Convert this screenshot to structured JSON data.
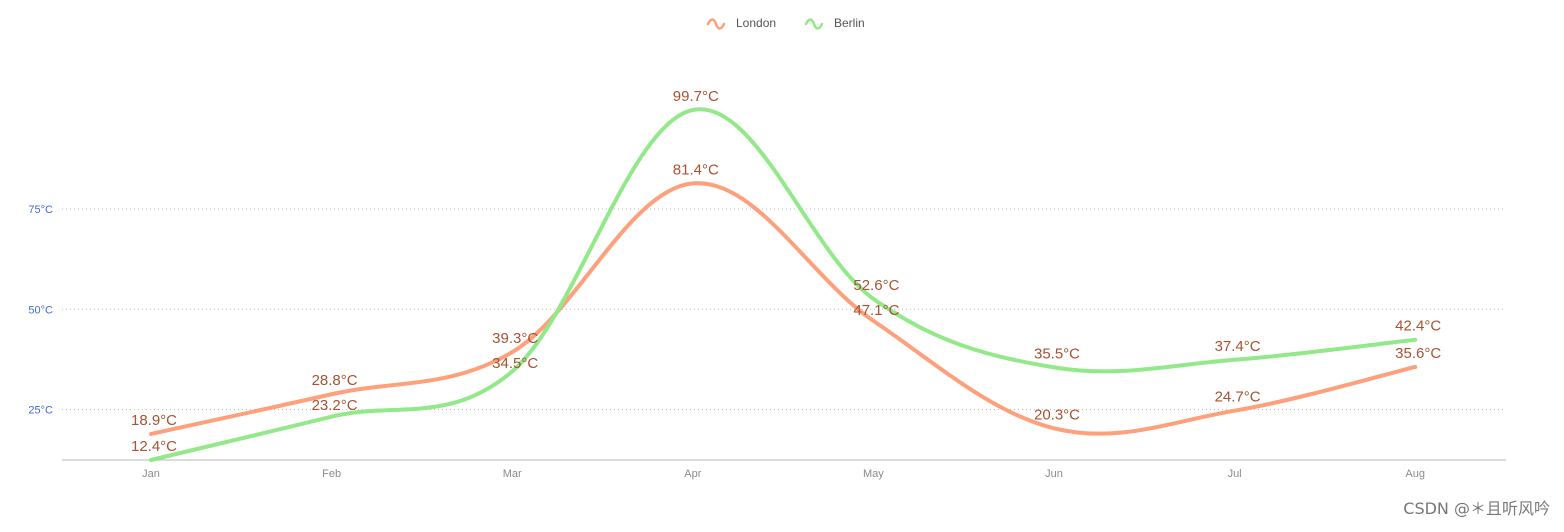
{
  "chart_data": {
    "type": "line",
    "smooth": true,
    "categories": [
      "Jan",
      "Feb",
      "Mar",
      "Apr",
      "May",
      "Jun",
      "Jul",
      "Aug"
    ],
    "series": [
      {
        "name": "London",
        "color": "#fda07b",
        "label_color": "#a65332",
        "values": [
          18.9,
          28.8,
          39.3,
          81.4,
          47.1,
          20.3,
          24.7,
          35.6
        ],
        "data_labels": [
          "18.9°C",
          "28.8°C",
          "39.3°C",
          "81.4°C",
          "47.1°C",
          "20.3°C",
          "24.7°C",
          "35.6°C"
        ]
      },
      {
        "name": "Berlin",
        "color": "#93e88a",
        "label_color": "#a65332",
        "values": [
          12.4,
          23.2,
          34.5,
          99.7,
          52.6,
          35.5,
          37.4,
          42.4
        ],
        "data_labels": [
          "12.4°C",
          "23.2°C",
          "34.5°C",
          "99.7°C",
          "52.6°C",
          "35.5°C",
          "37.4°C",
          "42.4°C"
        ]
      }
    ],
    "y_ticks": [
      {
        "value": 25,
        "label": "25°C"
      },
      {
        "value": 50,
        "label": "50°C"
      },
      {
        "value": 75,
        "label": "75°C"
      }
    ],
    "ylim": [
      12.4,
      99.7
    ],
    "y_tick_color": "#3f6bd9",
    "grid": true,
    "legend_position": "top-center",
    "title": "",
    "xlabel": "",
    "ylabel": ""
  },
  "watermark": "CSDN @＊且听风吟"
}
